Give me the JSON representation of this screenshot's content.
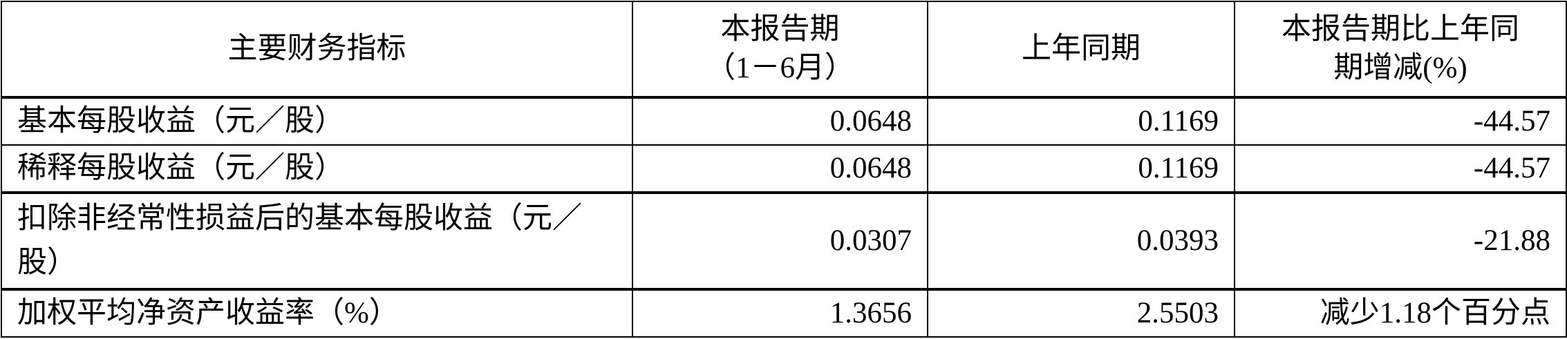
{
  "headers": [
    "主要财务指标",
    "本报告期\n（1－6月）",
    "上年同期",
    "本报告期比上年同期增减(%)"
  ],
  "header_lines": {
    "col2": [
      "本报告期",
      "（1－6月）"
    ],
    "col4": [
      "本报告期比上年同",
      "期增减(%)"
    ]
  },
  "rows": [
    {
      "label": "基本每股收益（元／股）",
      "current": "0.0648",
      "prior": "0.1169",
      "change": "-44.57"
    },
    {
      "label": "稀释每股收益（元／股）",
      "current": "0.0648",
      "prior": "0.1169",
      "change": "-44.57"
    },
    {
      "label": "扣除非经常性损益后的基本每股收益（元／股）",
      "current": "0.0307",
      "prior": "0.0393",
      "change": "-21.88"
    },
    {
      "label": "加权平均净资产收益率（%）",
      "current": "1.3656",
      "prior": "2.5503",
      "change": "减少1.18个百分点"
    }
  ]
}
